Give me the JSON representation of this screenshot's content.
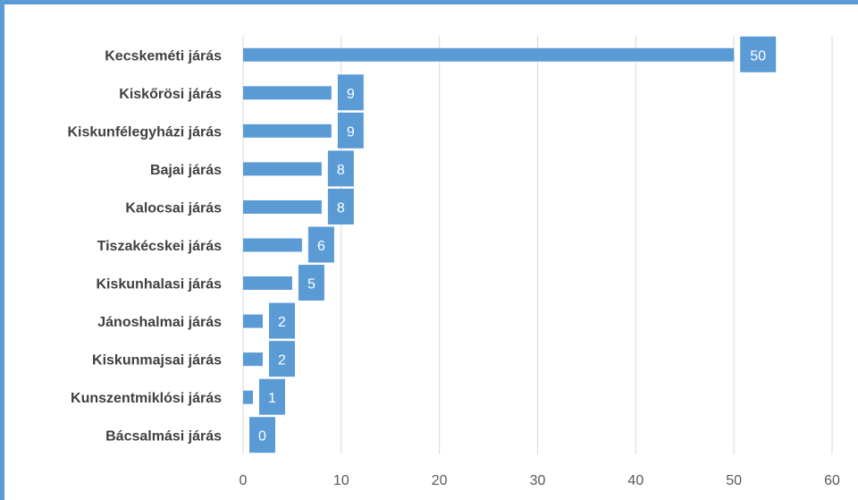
{
  "chart_data": {
    "type": "bar",
    "orientation": "horizontal",
    "categories": [
      "Kecskeméti járás",
      "Kiskőrösi járás",
      "Kiskunfélegyházi járás",
      "Bajai járás",
      "Kalocsai járás",
      "Tiszakécskei járás",
      "Kiskunhalasi járás",
      "Jánoshalmai járás",
      "Kiskunmajsai járás",
      "Kunszentmiklósi járás",
      "Bácsalmási járás"
    ],
    "values": [
      50,
      9,
      9,
      8,
      8,
      6,
      5,
      2,
      2,
      1,
      0
    ],
    "x_ticks": [
      0,
      10,
      20,
      30,
      40,
      50,
      60
    ],
    "xlim": [
      0,
      60
    ],
    "grid": true,
    "colors": {
      "bar": "#5b9bd5",
      "grid": "#d9d9d9",
      "frame": "#5b9bd5"
    }
  }
}
